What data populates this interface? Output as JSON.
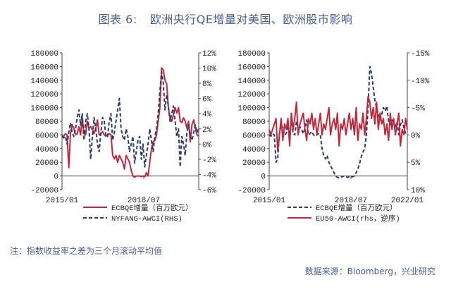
{
  "header": {
    "number": "图表 6:",
    "title": "欧洲央行QE增量对美国、欧洲股市影响"
  },
  "note": "注：指数收益率之差为三个月滚动平均值",
  "source": "数据来源：Bloomberg，兴业研究",
  "colors": {
    "ecb": "#c0283c",
    "index": "#2b3a67",
    "text": "#4a5f8c"
  },
  "chart_data": [
    {
      "type": "line",
      "x_ticks": [
        "2015/01",
        "2018/07"
      ],
      "y_left": {
        "ticks": [
          "180000",
          "160000",
          "140000",
          "120000",
          "100000",
          "80000",
          "60000",
          "40000",
          "20000",
          "0",
          "-20000"
        ],
        "lim": [
          -20000,
          180000
        ]
      },
      "y_right": {
        "ticks": [
          "12%",
          "10%",
          "8%",
          "6%",
          "4%",
          "2%",
          "0%",
          "-2%",
          "-4%",
          "-6%"
        ],
        "lim": [
          -6,
          12
        ]
      },
      "legend": [
        "ECBQE增量（百万欧元）",
        "NYFANG-AWCI(RHS)"
      ],
      "series": [
        {
          "name": "ECBQE增量（百万欧元）",
          "axis": "left",
          "style": "solid",
          "values": [
            60000,
            58000,
            62000,
            60000,
            12000,
            62000,
            75000,
            70000,
            60000,
            62000,
            72000,
            60000,
            85000,
            62000,
            60000,
            80000,
            70000,
            72000,
            68000,
            62000,
            70000,
            82000,
            60000,
            62000,
            65000,
            60000,
            58000,
            60000,
            62000,
            60000,
            30000,
            25000,
            30000,
            20000,
            30000,
            25000,
            20000,
            10000,
            30000,
            25000,
            20000,
            8000,
            0,
            -2000,
            0,
            0,
            0,
            -1000,
            0,
            -1000,
            5000,
            0,
            20000,
            40000,
            50000,
            52000,
            60000,
            80000,
            100000,
            158000,
            155000,
            140000,
            135000,
            100000,
            85000,
            80000,
            90000,
            100000,
            92000,
            100000,
            80000,
            78000,
            85000,
            80000,
            70000,
            80000,
            50000,
            75000,
            82000,
            70000,
            60000,
            58000
          ]
        },
        {
          "name": "NYFANG-AWCI(RHS)",
          "axis": "right",
          "style": "dashed",
          "values": [
            1.0,
            0.8,
            1.0,
            0.0,
            1.5,
            2.8,
            1.5,
            1.0,
            2.0,
            3.5,
            4.5,
            2.5,
            4.0,
            0.5,
            3.0,
            4.0,
            2.0,
            -2.0,
            1.0,
            3.5,
            2.0,
            0.0,
            -1.0,
            1.5,
            3.5,
            3.0,
            1.0,
            1.0,
            3.0,
            4.0,
            0.5,
            1.5,
            3.0,
            4.5,
            6.0,
            2.0,
            1.0,
            0.5,
            2.0,
            1.0,
            -1.0,
            0.0,
            1.0,
            -2.5,
            -1.0,
            0.5,
            1.0,
            -2.0,
            0.0,
            -3.0,
            -1.5,
            0.0,
            2.0,
            0.5,
            -1.0,
            1.0,
            2.0,
            4.0,
            7.0,
            9.5,
            8.0,
            4.5,
            6.5,
            5.0,
            3.0,
            4.0,
            5.0,
            3.0,
            1.0,
            2.0,
            -3.0,
            1.0,
            0.0,
            -1.5,
            1.5,
            2.5,
            1.0,
            0.5,
            1.5,
            2.5,
            1.5,
            2.0
          ]
        }
      ]
    },
    {
      "type": "line",
      "x_ticks": [
        "2015/01",
        "2018/07",
        "2022/01"
      ],
      "y_left": {
        "ticks": [
          "180000",
          "160000",
          "140000",
          "120000",
          "100000",
          "80000",
          "60000",
          "40000",
          "20000",
          "0",
          "-20000"
        ],
        "lim": [
          -20000,
          180000
        ]
      },
      "y_right": {
        "ticks": [
          "-15%",
          "-10%",
          "-5%",
          "0%",
          "5%",
          "10%"
        ],
        "lim": [
          -15,
          10
        ],
        "inverted": true
      },
      "legend": [
        "ECBQE增量（百万欧元）",
        "EU50-AWCI(rhs，逆序)"
      ],
      "series": [
        {
          "name": "ECBQE增量（百万欧元）",
          "axis": "left",
          "style": "dashed",
          "values": [
            60000,
            58000,
            62000,
            60000,
            20000,
            25000,
            62000,
            75000,
            70000,
            60000,
            62000,
            72000,
            60000,
            85000,
            62000,
            60000,
            80000,
            70000,
            72000,
            68000,
            62000,
            70000,
            82000,
            60000,
            62000,
            65000,
            60000,
            58000,
            60000,
            62000,
            60000,
            40000,
            30000,
            25000,
            30000,
            20000,
            15000,
            10000,
            5000,
            0,
            -2000,
            -3000,
            -2000,
            -1000,
            0,
            -1000,
            -2000,
            -1000,
            -2000,
            -1000,
            0,
            5000,
            10000,
            18000,
            28000,
            35000,
            40000,
            60000,
            100000,
            160000,
            150000,
            130000,
            110000,
            100000,
            90000,
            82000,
            90000,
            100000,
            95000,
            102000,
            80000,
            75000,
            82000,
            78000,
            70000,
            80000,
            60000,
            75000,
            82000,
            70000,
            62000,
            60000
          ]
        },
        {
          "name": "EU50-AWCI(rhs，逆序)",
          "axis": "right",
          "style": "solid",
          "values": [
            -1,
            0,
            -1,
            -2,
            -3,
            3,
            0,
            -3,
            1,
            -2,
            -1,
            -3,
            2,
            -4,
            -1,
            -3,
            -6,
            0,
            -2,
            -3,
            -4,
            -1,
            1,
            -3,
            -2,
            -4,
            -1,
            -3,
            0,
            -2,
            -4,
            0,
            -2,
            -1,
            -3,
            -5,
            0,
            -2,
            -3,
            -1,
            -4,
            2,
            -2,
            -1,
            -3,
            0,
            -2,
            -4,
            -1,
            -3,
            0,
            -5,
            1,
            -2,
            -1,
            -4,
            0,
            -3,
            -7,
            -6,
            -3,
            -5,
            -2,
            -6,
            -1,
            -4,
            -2,
            -3,
            0,
            -2,
            1,
            -4,
            -1,
            -3,
            0,
            -2,
            -4,
            2,
            -1,
            0,
            -3,
            -1
          ]
        }
      ]
    }
  ]
}
